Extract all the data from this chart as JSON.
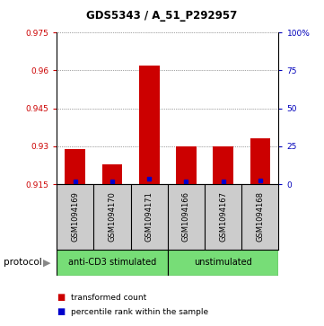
{
  "title": "GDS5343 / A_51_P292957",
  "samples": [
    "GSM1094169",
    "GSM1094170",
    "GSM1094171",
    "GSM1094166",
    "GSM1094167",
    "GSM1094168"
  ],
  "transformed_counts": [
    0.929,
    0.923,
    0.962,
    0.93,
    0.93,
    0.933
  ],
  "percentile_ranks": [
    2.0,
    2.0,
    3.5,
    2.0,
    2.0,
    2.5
  ],
  "ylim_left": [
    0.915,
    0.975
  ],
  "ylim_right": [
    0,
    100
  ],
  "yticks_left": [
    0.915,
    0.93,
    0.945,
    0.96,
    0.975
  ],
  "yticks_right": [
    0,
    25,
    50,
    75,
    100
  ],
  "ytick_labels_left": [
    "0.915",
    "0.93",
    "0.945",
    "0.96",
    "0.975"
  ],
  "ytick_labels_right": [
    "0",
    "25",
    "50",
    "75",
    "100%"
  ],
  "bar_color": "#cc0000",
  "dot_color": "#0000cc",
  "background_color": "#ffffff",
  "label_area_bg": "#cccccc",
  "protocol_color": "#77dd77",
  "protocol_groups": [
    {
      "label": "anti-CD3 stimulated",
      "count": 3
    },
    {
      "label": "unstimulated",
      "count": 3
    }
  ],
  "protocol_label": "protocol",
  "legend_items": [
    {
      "color": "#cc0000",
      "label": "transformed count"
    },
    {
      "color": "#0000cc",
      "label": "percentile rank within the sample"
    }
  ]
}
